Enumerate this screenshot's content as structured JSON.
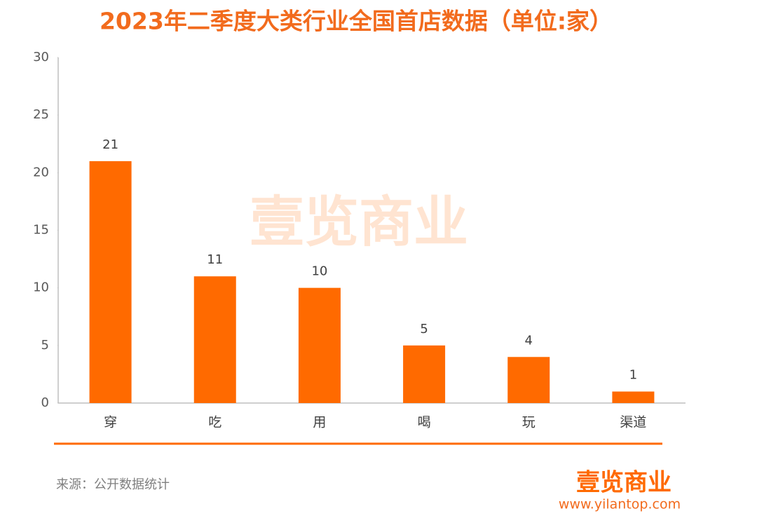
{
  "chart_data": {
    "type": "bar",
    "title": "2023年二季度大类行业全国首店数据（单位:家）",
    "categories": [
      "穿",
      "吃",
      "用",
      "喝",
      "玩",
      "渠道"
    ],
    "values": [
      21,
      11,
      10,
      5,
      4,
      1
    ],
    "color": "#ff6a00",
    "ylim": [
      0,
      30
    ],
    "yticks": [
      0,
      5,
      10,
      15,
      20,
      25,
      30
    ],
    "grid": false,
    "watermark": "壹览商业"
  },
  "source": "来源：公开数据统计",
  "logo": {
    "name": "壹览商业",
    "url": "www.yilantop.com"
  }
}
